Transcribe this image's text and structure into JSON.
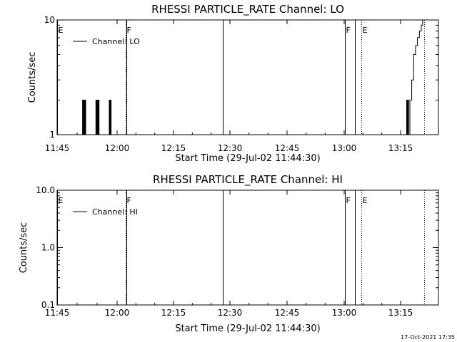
{
  "footer": {
    "timestamp": "17-Oct-2021 17:35"
  },
  "chart_data": [
    {
      "type": "line",
      "title": "RHESSI PARTICLE_RATE Channel: LO",
      "xlabel": "Start Time (29-Jul-02 11:44:30)",
      "ylabel": "Counts/sec",
      "yscale": "log",
      "ylim": [
        1,
        10
      ],
      "xlim": [
        "11:44:30",
        "13:24:30"
      ],
      "x_tick_labels": [
        "11:45",
        "12:00",
        "12:15",
        "12:30",
        "12:45",
        "13:00",
        "13:15"
      ],
      "y_tick_labels": [
        "1",
        "10"
      ],
      "legend": {
        "entries": [
          "Channel: LO"
        ],
        "placement": "top-left"
      },
      "series": [
        {
          "name": "Channel: LO",
          "points": [
            [
              "11:51:00",
              1
            ],
            [
              "11:51:10",
              2
            ],
            [
              "11:51:20",
              1
            ],
            [
              "11:51:30",
              2
            ],
            [
              "11:51:40",
              1
            ],
            [
              "11:51:50",
              2
            ],
            [
              "11:52:00",
              1
            ],
            [
              "11:54:30",
              1
            ],
            [
              "11:54:40",
              2
            ],
            [
              "11:54:50",
              1
            ],
            [
              "11:55:00",
              2
            ],
            [
              "11:55:10",
              1
            ],
            [
              "11:55:20",
              2
            ],
            [
              "11:55:30",
              1
            ],
            [
              "11:58:00",
              1
            ],
            [
              "11:58:10",
              2
            ],
            [
              "11:58:20",
              1
            ],
            [
              "11:58:30",
              2
            ],
            [
              "11:58:40",
              1
            ],
            [
              "13:16:00",
              1
            ],
            [
              "13:16:10",
              2
            ],
            [
              "13:16:20",
              1
            ],
            [
              "13:16:30",
              2
            ],
            [
              "13:16:40",
              1
            ],
            [
              "13:16:50",
              1
            ],
            [
              "13:17:00",
              2
            ],
            [
              "13:17:30",
              3
            ],
            [
              "13:18:00",
              5
            ],
            [
              "13:18:30",
              6
            ],
            [
              "13:19:00",
              7
            ],
            [
              "13:19:30",
              8
            ],
            [
              "13:20:00",
              9
            ],
            [
              "13:20:20",
              10
            ]
          ]
        }
      ],
      "markers": [
        {
          "label": "E",
          "time": "11:44:30",
          "style": "solid"
        },
        {
          "label": "F",
          "time": "12:02:30",
          "style": "dotted"
        },
        {
          "label": "",
          "time": "12:02:45",
          "style": "solid"
        },
        {
          "label": "",
          "time": "12:28:00",
          "style": "solid"
        },
        {
          "label": "F",
          "time": "13:00:00",
          "style": "solid"
        },
        {
          "label": "",
          "time": "13:02:30",
          "style": "solid"
        },
        {
          "label": "E",
          "time": "13:04:15",
          "style": "dotted"
        },
        {
          "label": "",
          "time": "13:20:50",
          "style": "dotted"
        }
      ]
    },
    {
      "type": "line",
      "title": "RHESSI PARTICLE_RATE Channel: HI",
      "xlabel": "Start Time (29-Jul-02 11:44:30)",
      "ylabel": "Counts/sec",
      "yscale": "log",
      "ylim": [
        0.1,
        10
      ],
      "xlim": [
        "11:44:30",
        "13:24:30"
      ],
      "x_tick_labels": [
        "11:45",
        "12:00",
        "12:15",
        "12:30",
        "12:45",
        "13:00",
        "13:15"
      ],
      "y_tick_labels": [
        "0.1",
        "1.0",
        "10.0"
      ],
      "legend": {
        "entries": [
          "Channel: HI"
        ],
        "placement": "top-left"
      },
      "series": [
        {
          "name": "Channel: HI",
          "points": []
        }
      ],
      "markers": [
        {
          "label": "E",
          "time": "11:44:30",
          "style": "solid"
        },
        {
          "label": "F",
          "time": "12:02:30",
          "style": "dotted"
        },
        {
          "label": "",
          "time": "12:02:45",
          "style": "solid"
        },
        {
          "label": "",
          "time": "12:28:00",
          "style": "solid"
        },
        {
          "label": "F",
          "time": "13:00:00",
          "style": "solid"
        },
        {
          "label": "",
          "time": "13:02:30",
          "style": "solid"
        },
        {
          "label": "E",
          "time": "13:04:15",
          "style": "dotted"
        },
        {
          "label": "",
          "time": "13:20:50",
          "style": "dotted"
        }
      ]
    }
  ]
}
